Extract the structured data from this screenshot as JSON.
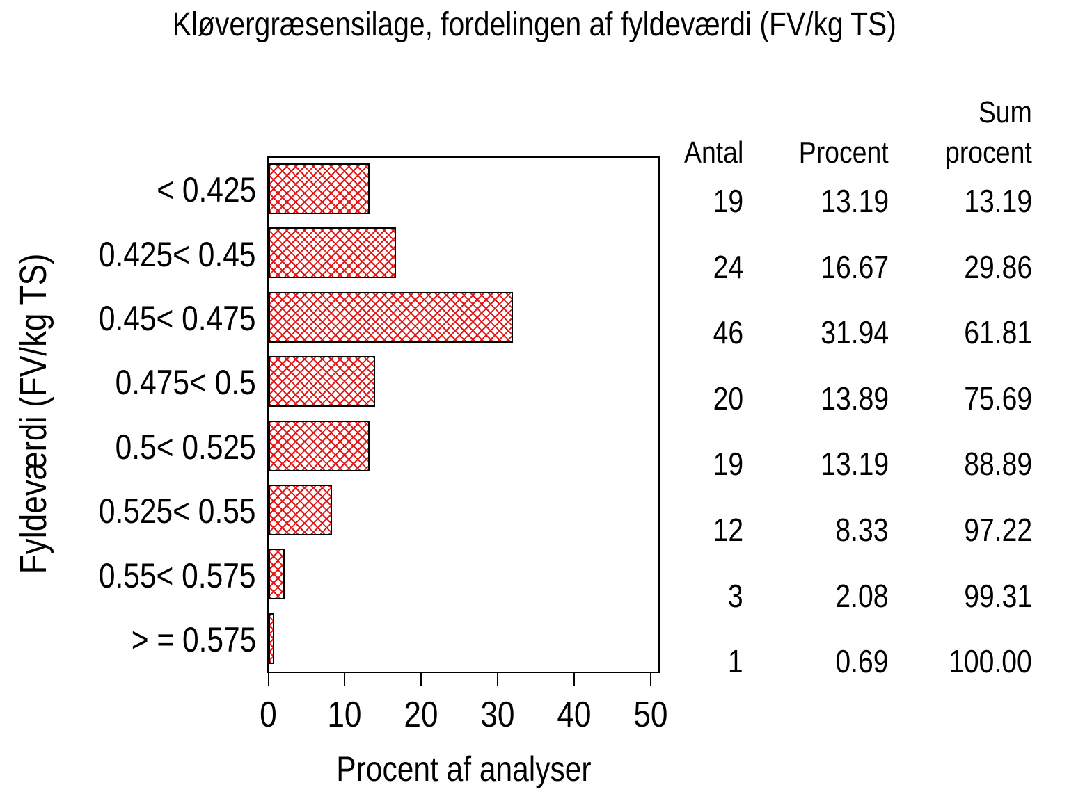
{
  "title": "Kløvergræsensilage, fordelingen af fyldeværdi (FV/kg TS)",
  "chart_data": {
    "type": "bar",
    "orientation": "horizontal",
    "title": "Kløvergræsensilage, fordelingen af fyldeværdi (FV/kg TS)",
    "xlabel": "Procent af analyser",
    "ylabel": "Fyldeværdi (FV/kg TS)",
    "categories": [
      "< 0.425",
      "0.425< 0.45",
      "0.45< 0.475",
      "0.475< 0.5",
      "0.5< 0.525",
      "0.525< 0.55",
      "0.55< 0.575",
      "> = 0.575"
    ],
    "values": [
      13.19,
      16.67,
      31.94,
      13.89,
      13.19,
      8.33,
      2.08,
      0.69
    ],
    "xticks": [
      0,
      10,
      20,
      30,
      40,
      50
    ],
    "xlim": [
      0,
      51.2
    ],
    "grid": false,
    "legend": "none",
    "bar_style": {
      "fill_pattern": "diagonal-crosshatch",
      "pattern_color": "#e11818",
      "border_color": "#000000",
      "background": "#ffffff"
    }
  },
  "table": {
    "headers": [
      "Antal",
      "Procent",
      "Sum\nprocent"
    ],
    "rows": [
      [
        "19",
        "13.19",
        "13.19"
      ],
      [
        "24",
        "16.67",
        "29.86"
      ],
      [
        "46",
        "31.94",
        "61.81"
      ],
      [
        "20",
        "13.89",
        "75.69"
      ],
      [
        "19",
        "13.19",
        "88.89"
      ],
      [
        "12",
        "8.33",
        "97.22"
      ],
      [
        "3",
        "2.08",
        "99.31"
      ],
      [
        "1",
        "0.69",
        "100.00"
      ]
    ]
  }
}
